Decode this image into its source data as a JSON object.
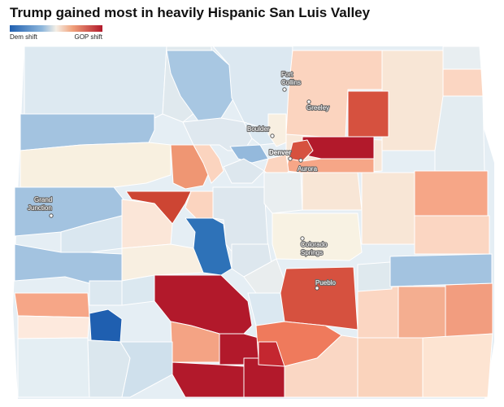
{
  "title": "Trump gained most in heavily Hispanic San Luis Valley",
  "legend": {
    "left_label": "Dem shift",
    "right_label": "GOP shift",
    "colors": [
      "#1f5fb0",
      "#8eb7dc",
      "#f4efe6",
      "#f0a07a",
      "#b2192b"
    ]
  },
  "palette": {
    "dem_strong": "#2a6db3",
    "dem_mid": "#8db6da",
    "dem_light": "#c6dced",
    "neutral_blue": "#dde9f1",
    "neutral_warm": "#f8f1e3",
    "gop_light": "#fad3bc",
    "gop_mid": "#f3a787",
    "gop_strong": "#e0684d",
    "gop_red": "#cf4a3c",
    "gop_darkest": "#b2192b"
  },
  "cities": [
    {
      "name": "Fort\nCollins",
      "label_lines": [
        "Fort",
        "Collins"
      ]
    },
    {
      "name": "Greeley"
    },
    {
      "name": "Boulder"
    },
    {
      "name": "Denver"
    },
    {
      "name": "Aurora"
    },
    {
      "name": "Grand Junction",
      "label_lines": [
        "Grand",
        "Junction"
      ]
    },
    {
      "name": "Colorado Springs",
      "label_lines": [
        "Colorado",
        "Springs"
      ]
    },
    {
      "name": "Pueblo"
    }
  ]
}
